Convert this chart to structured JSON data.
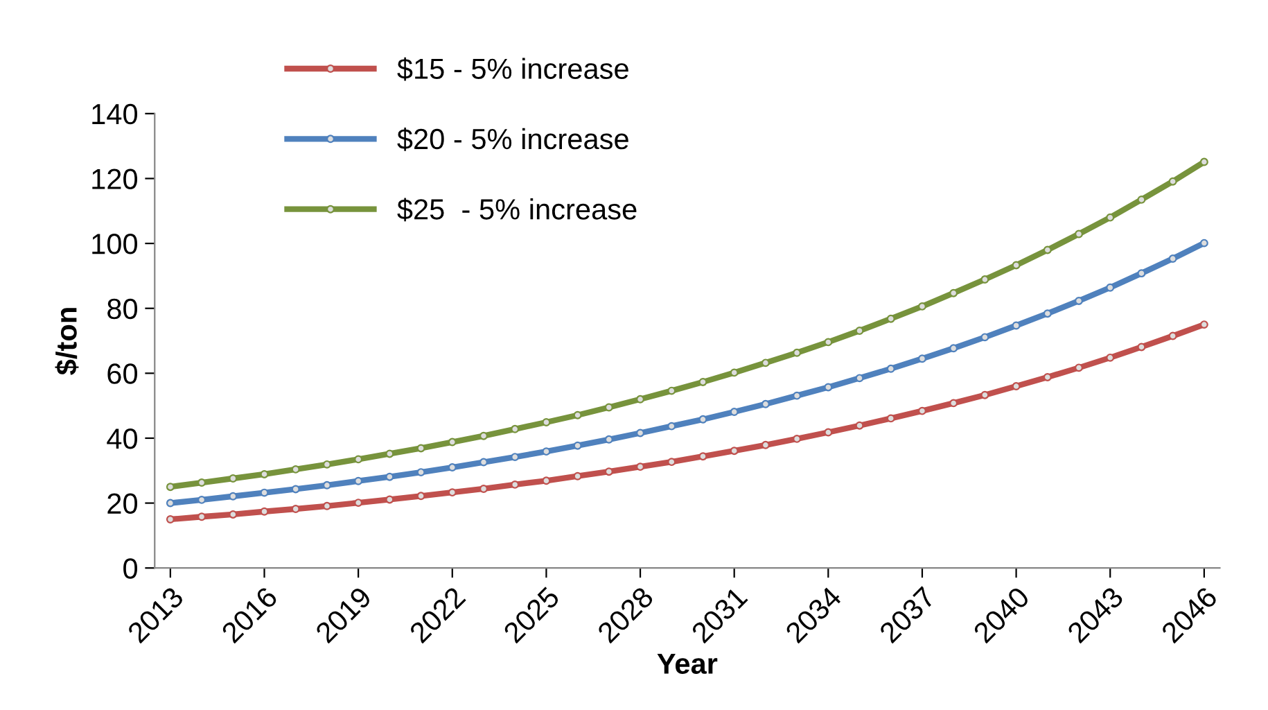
{
  "chart_data": {
    "type": "line",
    "xlabel": "Year",
    "ylabel": "$/ton",
    "x": [
      2013,
      2014,
      2015,
      2016,
      2017,
      2018,
      2019,
      2020,
      2021,
      2022,
      2023,
      2024,
      2025,
      2026,
      2027,
      2028,
      2029,
      2030,
      2031,
      2032,
      2033,
      2034,
      2035,
      2036,
      2037,
      2038,
      2039,
      2040,
      2041,
      2042,
      2043,
      2044,
      2045,
      2046
    ],
    "series": [
      {
        "name": "$15 - 5% increase",
        "color": "#c0504d",
        "values": [
          15,
          15.8,
          16.5,
          17.4,
          18.2,
          19.1,
          20.1,
          21.1,
          22.2,
          23.3,
          24.4,
          25.7,
          26.9,
          28.3,
          29.7,
          31.2,
          32.7,
          34.4,
          36.1,
          37.9,
          39.8,
          41.8,
          43.9,
          46.1,
          48.4,
          50.8,
          53.3,
          56.0,
          58.8,
          61.7,
          64.8,
          68.1,
          71.5,
          75.0
        ]
      },
      {
        "name": "$20 - 5% increase",
        "color": "#4f81bd",
        "values": [
          20,
          21,
          22.1,
          23.2,
          24.3,
          25.5,
          26.8,
          28.1,
          29.5,
          31.0,
          32.6,
          34.2,
          35.9,
          37.7,
          39.6,
          41.6,
          43.7,
          45.8,
          48.1,
          50.5,
          53.1,
          55.7,
          58.5,
          61.4,
          64.5,
          67.7,
          71.1,
          74.7,
          78.4,
          82.3,
          86.4,
          90.8,
          95.3,
          100.1
        ]
      },
      {
        "name": "$25  - 5% increase",
        "color": "#77933c",
        "values": [
          25,
          26.3,
          27.6,
          28.9,
          30.4,
          31.9,
          33.5,
          35.2,
          36.9,
          38.8,
          40.7,
          42.8,
          44.9,
          47.1,
          49.5,
          52.0,
          54.6,
          57.3,
          60.2,
          63.2,
          66.3,
          69.6,
          73.1,
          76.8,
          80.6,
          84.7,
          88.9,
          93.3,
          98.0,
          102.9,
          108.0,
          113.5,
          119.1,
          125.1
        ]
      }
    ],
    "xlim": [
      2012.5,
      2046.5
    ],
    "xticks": [
      2013,
      2016,
      2019,
      2022,
      2025,
      2028,
      2031,
      2034,
      2037,
      2040,
      2043,
      2046
    ],
    "ylim": [
      0,
      140
    ],
    "yticks": [
      0,
      20,
      40,
      60,
      80,
      100,
      120,
      140
    ],
    "grid": false,
    "legend": "top left",
    "marker": "circle",
    "line_style": "solid"
  }
}
